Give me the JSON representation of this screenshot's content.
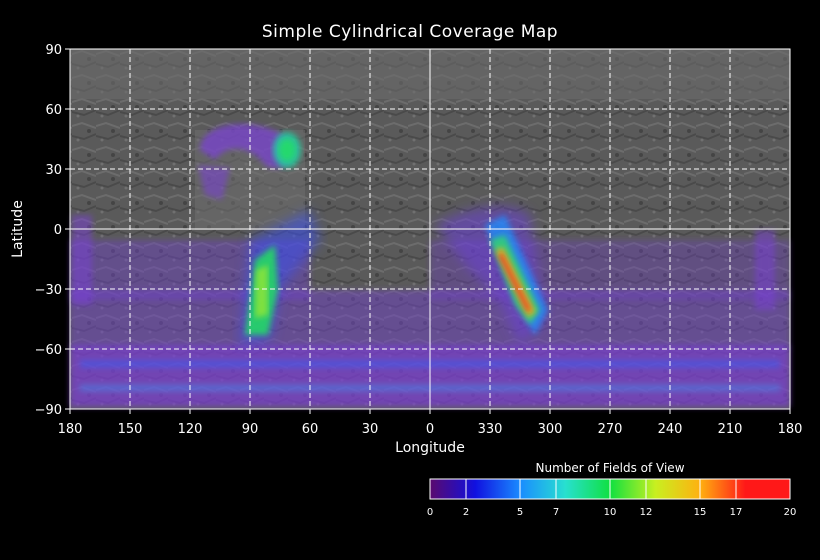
{
  "title": "Simple Cylindrical Coverage Map",
  "map": {
    "xlabel": "Longitude",
    "ylabel": "Latitude",
    "x_ticks": [
      "180",
      "150",
      "120",
      "90",
      "60",
      "30",
      "0",
      "330",
      "300",
      "270",
      "240",
      "210",
      "180"
    ],
    "y_ticks": [
      "90",
      "60",
      "30",
      "0",
      "−30",
      "−60",
      "−90"
    ],
    "grid": true,
    "lat_range": [
      -90,
      90
    ],
    "lon_order": "180 east-to-west through 0 back to 180"
  },
  "colorbar": {
    "title": "Number of Fields of View",
    "ticks": [
      "0",
      "2",
      "5",
      "7",
      "10",
      "12",
      "15",
      "17",
      "20"
    ],
    "range": [
      0,
      20
    ],
    "colors": [
      "#5a0a6e",
      "#1010e0",
      "#1a8cff",
      "#28e0d0",
      "#10e040",
      "#c8f020",
      "#ffb010",
      "#ff1818"
    ]
  },
  "coverage_regions": [
    {
      "name": "north-cap-arc",
      "lon_center": 90,
      "lat_center": 38,
      "level": 4
    },
    {
      "name": "north-cap-core",
      "lon_center": 73,
      "lat_center": 38,
      "level": 10
    },
    {
      "name": "west-diagonal-band",
      "lon_center": 88,
      "lat_center": -25,
      "level": 11
    },
    {
      "name": "east-diagonal-band",
      "lon_center": 318,
      "lat_center": -20,
      "level": 17
    },
    {
      "name": "southern-swath",
      "lon_center": 0,
      "lat_center": -75,
      "level": 3
    }
  ]
}
